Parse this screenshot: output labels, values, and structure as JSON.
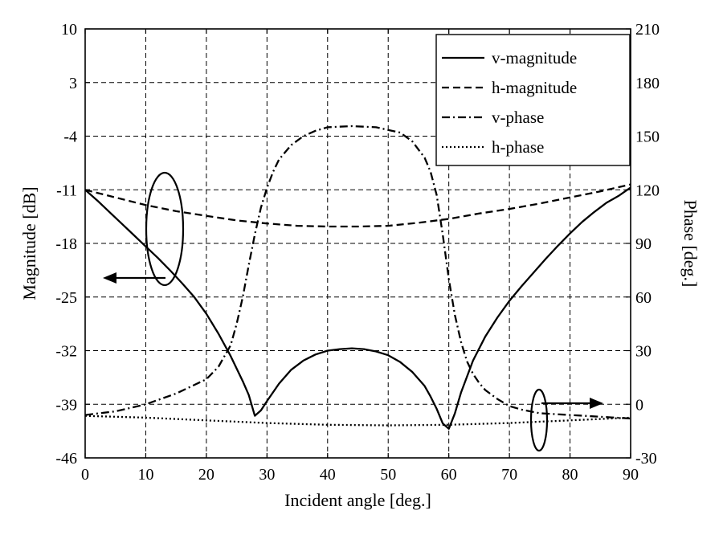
{
  "chart_data": {
    "type": "line",
    "xlabel": "Incident angle [deg.]",
    "ylabel_left": "Magnitude [dB]",
    "ylabel_right": "Phase [deg.]",
    "xlim": [
      0,
      90
    ],
    "ylim_left": [
      -46,
      10
    ],
    "ylim_right": [
      -30,
      210
    ],
    "x_ticks": [
      "0",
      "10",
      "20",
      "30",
      "40",
      "50",
      "60",
      "70",
      "80",
      "90"
    ],
    "y_left_ticks": [
      "10",
      "3",
      "-4",
      "-11",
      "-18",
      "-25",
      "-32",
      "-39",
      "-46"
    ],
    "y_right_ticks": [
      "210",
      "180",
      "150",
      "120",
      "90",
      "60",
      "30",
      "0",
      "-30"
    ],
    "grid": true,
    "legend_position": "top-right",
    "series": [
      {
        "name": "v-magnitude",
        "axis": "left",
        "line_style": "solid",
        "x": [
          0,
          2,
          4,
          6,
          8,
          10,
          12,
          14,
          16,
          18,
          20,
          22,
          24,
          26,
          27,
          28,
          29,
          30,
          32,
          34,
          36,
          38,
          40,
          42,
          44,
          46,
          48,
          50,
          52,
          54,
          56,
          57,
          58,
          59,
          60,
          61,
          62,
          64,
          66,
          68,
          70,
          72,
          74,
          76,
          78,
          80,
          82,
          84,
          86,
          88,
          90
        ],
        "values": [
          -11.0,
          -12.4,
          -13.9,
          -15.4,
          -16.9,
          -18.4,
          -19.9,
          -21.5,
          -23.2,
          -25.0,
          -27.2,
          -29.8,
          -32.7,
          -36.0,
          -37.8,
          -40.5,
          -39.8,
          -38.6,
          -36.3,
          -34.5,
          -33.3,
          -32.5,
          -32.0,
          -31.8,
          -31.7,
          -31.8,
          -32.1,
          -32.6,
          -33.5,
          -34.8,
          -36.6,
          -38.0,
          -39.6,
          -41.5,
          -42.2,
          -40.2,
          -37.5,
          -33.3,
          -30.2,
          -27.7,
          -25.5,
          -23.6,
          -21.8,
          -20.0,
          -18.3,
          -16.7,
          -15.2,
          -13.9,
          -12.7,
          -11.8,
          -10.7
        ]
      },
      {
        "name": "h-magnitude",
        "axis": "left",
        "line_style": "dashed",
        "x": [
          0,
          5,
          10,
          15,
          20,
          25,
          30,
          35,
          40,
          45,
          50,
          55,
          60,
          65,
          70,
          75,
          80,
          85,
          90
        ],
        "values": [
          -11.0,
          -12.0,
          -13.0,
          -13.8,
          -14.4,
          -15.0,
          -15.4,
          -15.7,
          -15.8,
          -15.8,
          -15.7,
          -15.3,
          -14.8,
          -14.1,
          -13.5,
          -12.8,
          -12.0,
          -11.2,
          -10.3
        ]
      },
      {
        "name": "v-phase",
        "axis": "right",
        "line_style": "dashdot",
        "x": [
          0,
          5,
          10,
          15,
          20,
          22,
          24,
          25,
          26,
          27,
          28,
          29,
          30,
          31,
          32,
          34,
          36,
          38,
          40,
          44,
          48,
          52,
          54,
          56,
          57,
          58,
          59,
          60,
          61,
          62,
          63,
          64,
          65,
          66,
          68,
          70,
          72,
          75,
          80,
          85,
          90
        ],
        "values": [
          -6,
          -4,
          0,
          6,
          14,
          21,
          33,
          45,
          60,
          78,
          95,
          110,
          121,
          130,
          137,
          145,
          150,
          153,
          155,
          155.6,
          155,
          152,
          147,
          138,
          130,
          117,
          95,
          70,
          50,
          35,
          24,
          17,
          12,
          8,
          3,
          -1,
          -3,
          -5,
          -6,
          -7,
          -8
        ]
      },
      {
        "name": "h-phase",
        "axis": "right",
        "line_style": "dotted",
        "x": [
          0,
          10,
          20,
          30,
          40,
          50,
          60,
          70,
          80,
          90
        ],
        "values": [
          -6.5,
          -7.5,
          -9,
          -10.5,
          -11.5,
          -11.8,
          -11.5,
          -10.5,
          -9,
          -7.5
        ]
      }
    ]
  }
}
